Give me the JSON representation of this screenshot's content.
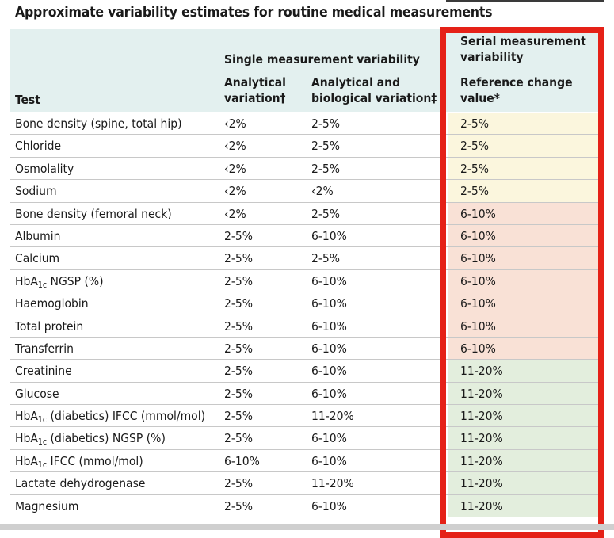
{
  "title": "Approximate variability estimates for routine medical measurements",
  "header": {
    "group_single": "Single measurement variability",
    "group_serial_line1": "Serial measurement",
    "group_serial_line2": "variability",
    "col_test": "Test",
    "col_analytical_line1": "Analytical",
    "col_analytical_line2": "variation†",
    "col_bio_line1": "Analytical and",
    "col_bio_line2": "biological variation‡",
    "col_rcv_line1": "Reference change",
    "col_rcv_line2": "value*"
  },
  "colors": {
    "header_bg": "#e3f0ef",
    "band_2_5": "#fbf6dd",
    "band_6_10": "#f9e1d6",
    "band_11_20": "#e3eedd",
    "highlight_box": "#e52117"
  },
  "rows": [
    {
      "test": "Bone density (spine, total hip)",
      "analytical": "‹2%",
      "biological": "2-5%",
      "rcv": "2-5%",
      "band": "band_2_5"
    },
    {
      "test": "Chloride",
      "analytical": "‹2%",
      "biological": "2-5%",
      "rcv": "2-5%",
      "band": "band_2_5"
    },
    {
      "test": "Osmolality",
      "analytical": "‹2%",
      "biological": "2-5%",
      "rcv": "2-5%",
      "band": "band_2_5"
    },
    {
      "test": "Sodium",
      "analytical": "‹2%",
      "biological": "‹2%",
      "rcv": "2-5%",
      "band": "band_2_5"
    },
    {
      "test": "Bone density (femoral neck)",
      "analytical": "‹2%",
      "biological": "2-5%",
      "rcv": "6-10%",
      "band": "band_6_10"
    },
    {
      "test": "Albumin",
      "analytical": "2-5%",
      "biological": "6-10%",
      "rcv": "6-10%",
      "band": "band_6_10"
    },
    {
      "test": "Calcium",
      "analytical": "2-5%",
      "biological": "2-5%",
      "rcv": "6-10%",
      "band": "band_6_10"
    },
    {
      "test": "HbA",
      "test_sub": "1c",
      "test_suffix": " NGSP (%)",
      "analytical": "2-5%",
      "biological": "6-10%",
      "rcv": "6-10%",
      "band": "band_6_10"
    },
    {
      "test": "Haemoglobin",
      "analytical": "2-5%",
      "biological": "6-10%",
      "rcv": "6-10%",
      "band": "band_6_10"
    },
    {
      "test": "Total protein",
      "analytical": "2-5%",
      "biological": "6-10%",
      "rcv": "6-10%",
      "band": "band_6_10"
    },
    {
      "test": "Transferrin",
      "analytical": "2-5%",
      "biological": "6-10%",
      "rcv": "6-10%",
      "band": "band_6_10"
    },
    {
      "test": "Creatinine",
      "analytical": "2-5%",
      "biological": "6-10%",
      "rcv": "11-20%",
      "band": "band_11_20"
    },
    {
      "test": "Glucose",
      "analytical": "2-5%",
      "biological": "6-10%",
      "rcv": "11-20%",
      "band": "band_11_20"
    },
    {
      "test": "HbA",
      "test_sub": "1c",
      "test_suffix": " (diabetics) IFCC (mmol/mol)",
      "analytical": "2-5%",
      "biological": "11-20%",
      "rcv": "11-20%",
      "band": "band_11_20"
    },
    {
      "test": "HbA",
      "test_sub": "1c",
      "test_suffix": " (diabetics) NGSP (%)",
      "analytical": "2-5%",
      "biological": "6-10%",
      "rcv": "11-20%",
      "band": "band_11_20"
    },
    {
      "test": "HbA",
      "test_sub": "1c",
      "test_suffix": " IFCC (mmol/mol)",
      "analytical": "6-10%",
      "biological": "6-10%",
      "rcv": "11-20%",
      "band": "band_11_20"
    },
    {
      "test": "Lactate dehydrogenase",
      "analytical": "2-5%",
      "biological": "11-20%",
      "rcv": "11-20%",
      "band": "band_11_20"
    },
    {
      "test": "Magnesium",
      "analytical": "2-5%",
      "biological": "6-10%",
      "rcv": "11-20%",
      "band": "band_11_20"
    }
  ]
}
